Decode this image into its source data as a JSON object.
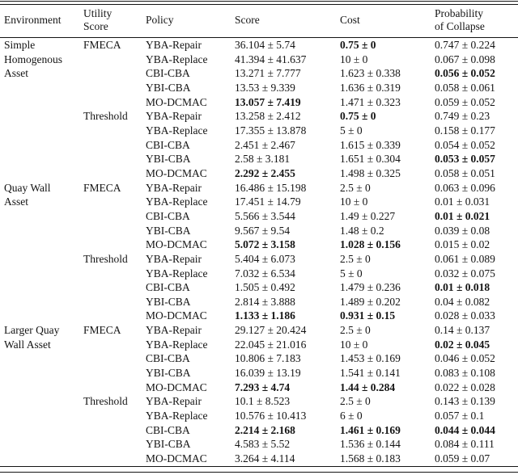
{
  "table": {
    "headers": [
      "Environment",
      "Utility\nScore",
      "Policy",
      "Score",
      "Cost",
      "Probability\nof Collapse"
    ],
    "environments": [
      "Simple Homogenous Asset",
      "Quay Wall Asset",
      "Larger Quay Wall Asset"
    ],
    "utility_scores": [
      "FMECA",
      "Threshold"
    ],
    "policies": [
      "YBA-Repair",
      "YBA-Replace",
      "CBI-CBA",
      "YBI-CBA",
      "MO-DCMAC"
    ],
    "plus_minus_symbol": "±",
    "text_color": "#141414",
    "background_color": "#ffffff",
    "rows": [
      {
        "env": "Simple",
        "utility": "FMECA",
        "policy": "YBA-Repair",
        "score": "36.104 ± 5.74",
        "cost": "0.75 ± 0",
        "prob": "0.747 ± 0.224",
        "bold": [
          "cost"
        ]
      },
      {
        "env": "Homogenous",
        "utility": "",
        "policy": "YBA-Replace",
        "score": "41.394 ± 41.637",
        "cost": "10 ± 0",
        "prob": "0.067 ± 0.098",
        "bold": []
      },
      {
        "env": "Asset",
        "utility": "",
        "policy": "CBI-CBA",
        "score": "13.271 ± 7.777",
        "cost": "1.623 ± 0.338",
        "prob": "0.056 ± 0.052",
        "bold": [
          "prob"
        ]
      },
      {
        "env": "",
        "utility": "",
        "policy": "YBI-CBA",
        "score": "13.53 ± 9.339",
        "cost": "1.636 ± 0.319",
        "prob": "0.058 ± 0.061",
        "bold": []
      },
      {
        "env": "",
        "utility": "",
        "policy": "MO-DCMAC",
        "score": "13.057 ± 7.419",
        "cost": "1.471 ± 0.323",
        "prob": "0.059 ± 0.052",
        "bold": [
          "score"
        ]
      },
      {
        "env": "",
        "utility": "Threshold",
        "policy": "YBA-Repair",
        "score": "13.258 ± 2.412",
        "cost": "0.75 ± 0",
        "prob": "0.749 ± 0.23",
        "bold": [
          "cost"
        ]
      },
      {
        "env": "",
        "utility": "",
        "policy": "YBA-Replace",
        "score": "17.355 ± 13.878",
        "cost": "5 ± 0",
        "prob": "0.158 ± 0.177",
        "bold": []
      },
      {
        "env": "",
        "utility": "",
        "policy": "CBI-CBA",
        "score": "2.451 ± 2.467",
        "cost": "1.615 ± 0.339",
        "prob": "0.054 ± 0.052",
        "bold": []
      },
      {
        "env": "",
        "utility": "",
        "policy": "YBI-CBA",
        "score": "2.58 ± 3.181",
        "cost": "1.651 ± 0.304",
        "prob": "0.053 ± 0.057",
        "bold": [
          "prob"
        ]
      },
      {
        "env": "",
        "utility": "",
        "policy": "MO-DCMAC",
        "score": "2.292 ± 2.455",
        "cost": "1.498 ± 0.325",
        "prob": "0.058 ± 0.051",
        "bold": [
          "score"
        ]
      },
      {
        "env": "Quay Wall",
        "utility": "FMECA",
        "policy": "YBA-Repair",
        "score": "16.486 ± 15.198",
        "cost": "2.5 ± 0",
        "prob": "0.063 ± 0.096",
        "bold": []
      },
      {
        "env": "Asset",
        "utility": "",
        "policy": "YBA-Replace",
        "score": "17.451 ± 14.79",
        "cost": "10 ± 0",
        "prob": "0.01 ± 0.031",
        "bold": []
      },
      {
        "env": "",
        "utility": "",
        "policy": "CBI-CBA",
        "score": "5.566 ± 3.544",
        "cost": "1.49 ± 0.227",
        "prob": "0.01 ± 0.021",
        "bold": [
          "prob"
        ]
      },
      {
        "env": "",
        "utility": "",
        "policy": "YBI-CBA",
        "score": "9.567 ± 9.54",
        "cost": "1.48 ± 0.2",
        "prob": "0.039 ± 0.08",
        "bold": []
      },
      {
        "env": "",
        "utility": "",
        "policy": "MO-DCMAC",
        "score": "5.072 ± 3.158",
        "cost": "1.028 ± 0.156",
        "prob": "0.015 ± 0.02",
        "bold": [
          "score",
          "cost"
        ]
      },
      {
        "env": "",
        "utility": "Threshold",
        "policy": "YBA-Repair",
        "score": "5.404 ± 6.073",
        "cost": "2.5 ± 0",
        "prob": "0.061 ± 0.089",
        "bold": []
      },
      {
        "env": "",
        "utility": "",
        "policy": "YBA-Replace",
        "score": "7.032 ± 6.534",
        "cost": "5 ± 0",
        "prob": "0.032 ± 0.075",
        "bold": []
      },
      {
        "env": "",
        "utility": "",
        "policy": "CBI-CBA",
        "score": "1.505 ± 0.492",
        "cost": "1.479 ± 0.236",
        "prob": "0.01 ± 0.018",
        "bold": [
          "prob"
        ]
      },
      {
        "env": "",
        "utility": "",
        "policy": "YBI-CBA",
        "score": "2.814 ± 3.888",
        "cost": "1.489 ± 0.202",
        "prob": "0.04 ± 0.082",
        "bold": []
      },
      {
        "env": "",
        "utility": "",
        "policy": "MO-DCMAC",
        "score": "1.133 ± 1.186",
        "cost": "0.931 ± 0.15",
        "prob": "0.028 ± 0.033",
        "bold": [
          "score",
          "cost"
        ]
      },
      {
        "env": "Larger Quay",
        "utility": "FMECA",
        "policy": "YBA-Repair",
        "score": "29.127 ± 20.424",
        "cost": "2.5 ± 0",
        "prob": "0.14 ± 0.137",
        "bold": []
      },
      {
        "env": "Wall Asset",
        "utility": "",
        "policy": "YBA-Replace",
        "score": "22.045 ± 21.016",
        "cost": "10 ± 0",
        "prob": "0.02 ± 0.045",
        "bold": [
          "prob"
        ]
      },
      {
        "env": "",
        "utility": "",
        "policy": "CBI-CBA",
        "score": "10.806 ± 7.183",
        "cost": "1.453 ± 0.169",
        "prob": "0.046 ± 0.052",
        "bold": []
      },
      {
        "env": "",
        "utility": "",
        "policy": "YBI-CBA",
        "score": "16.039 ± 13.19",
        "cost": "1.541 ± 0.141",
        "prob": "0.083 ± 0.108",
        "bold": []
      },
      {
        "env": "",
        "utility": "",
        "policy": "MO-DCMAC",
        "score": "7.293 ± 4.74",
        "cost": "1.44 ± 0.284",
        "prob": "0.022 ± 0.028",
        "bold": [
          "score",
          "cost"
        ]
      },
      {
        "env": "",
        "utility": "Threshold",
        "policy": "YBA-Repair",
        "score": "10.1 ± 8.523",
        "cost": "2.5 ± 0",
        "prob": "0.143 ± 0.139",
        "bold": []
      },
      {
        "env": "",
        "utility": "",
        "policy": "YBA-Replace",
        "score": "10.576 ± 10.413",
        "cost": "6 ± 0",
        "prob": "0.057 ± 0.1",
        "bold": []
      },
      {
        "env": "",
        "utility": "",
        "policy": "CBI-CBA",
        "score": "2.214 ± 2.168",
        "cost": "1.461 ± 0.169",
        "prob": "0.044 ± 0.044",
        "bold": [
          "score",
          "cost",
          "prob"
        ]
      },
      {
        "env": "",
        "utility": "",
        "policy": "YBI-CBA",
        "score": "4.583 ± 5.52",
        "cost": "1.536 ± 0.144",
        "prob": "0.084 ± 0.111",
        "bold": []
      },
      {
        "env": "",
        "utility": "",
        "policy": "MO-DCMAC",
        "score": "3.264 ± 4.114",
        "cost": "1.568 ± 0.183",
        "prob": "0.059 ± 0.07",
        "bold": []
      }
    ]
  }
}
